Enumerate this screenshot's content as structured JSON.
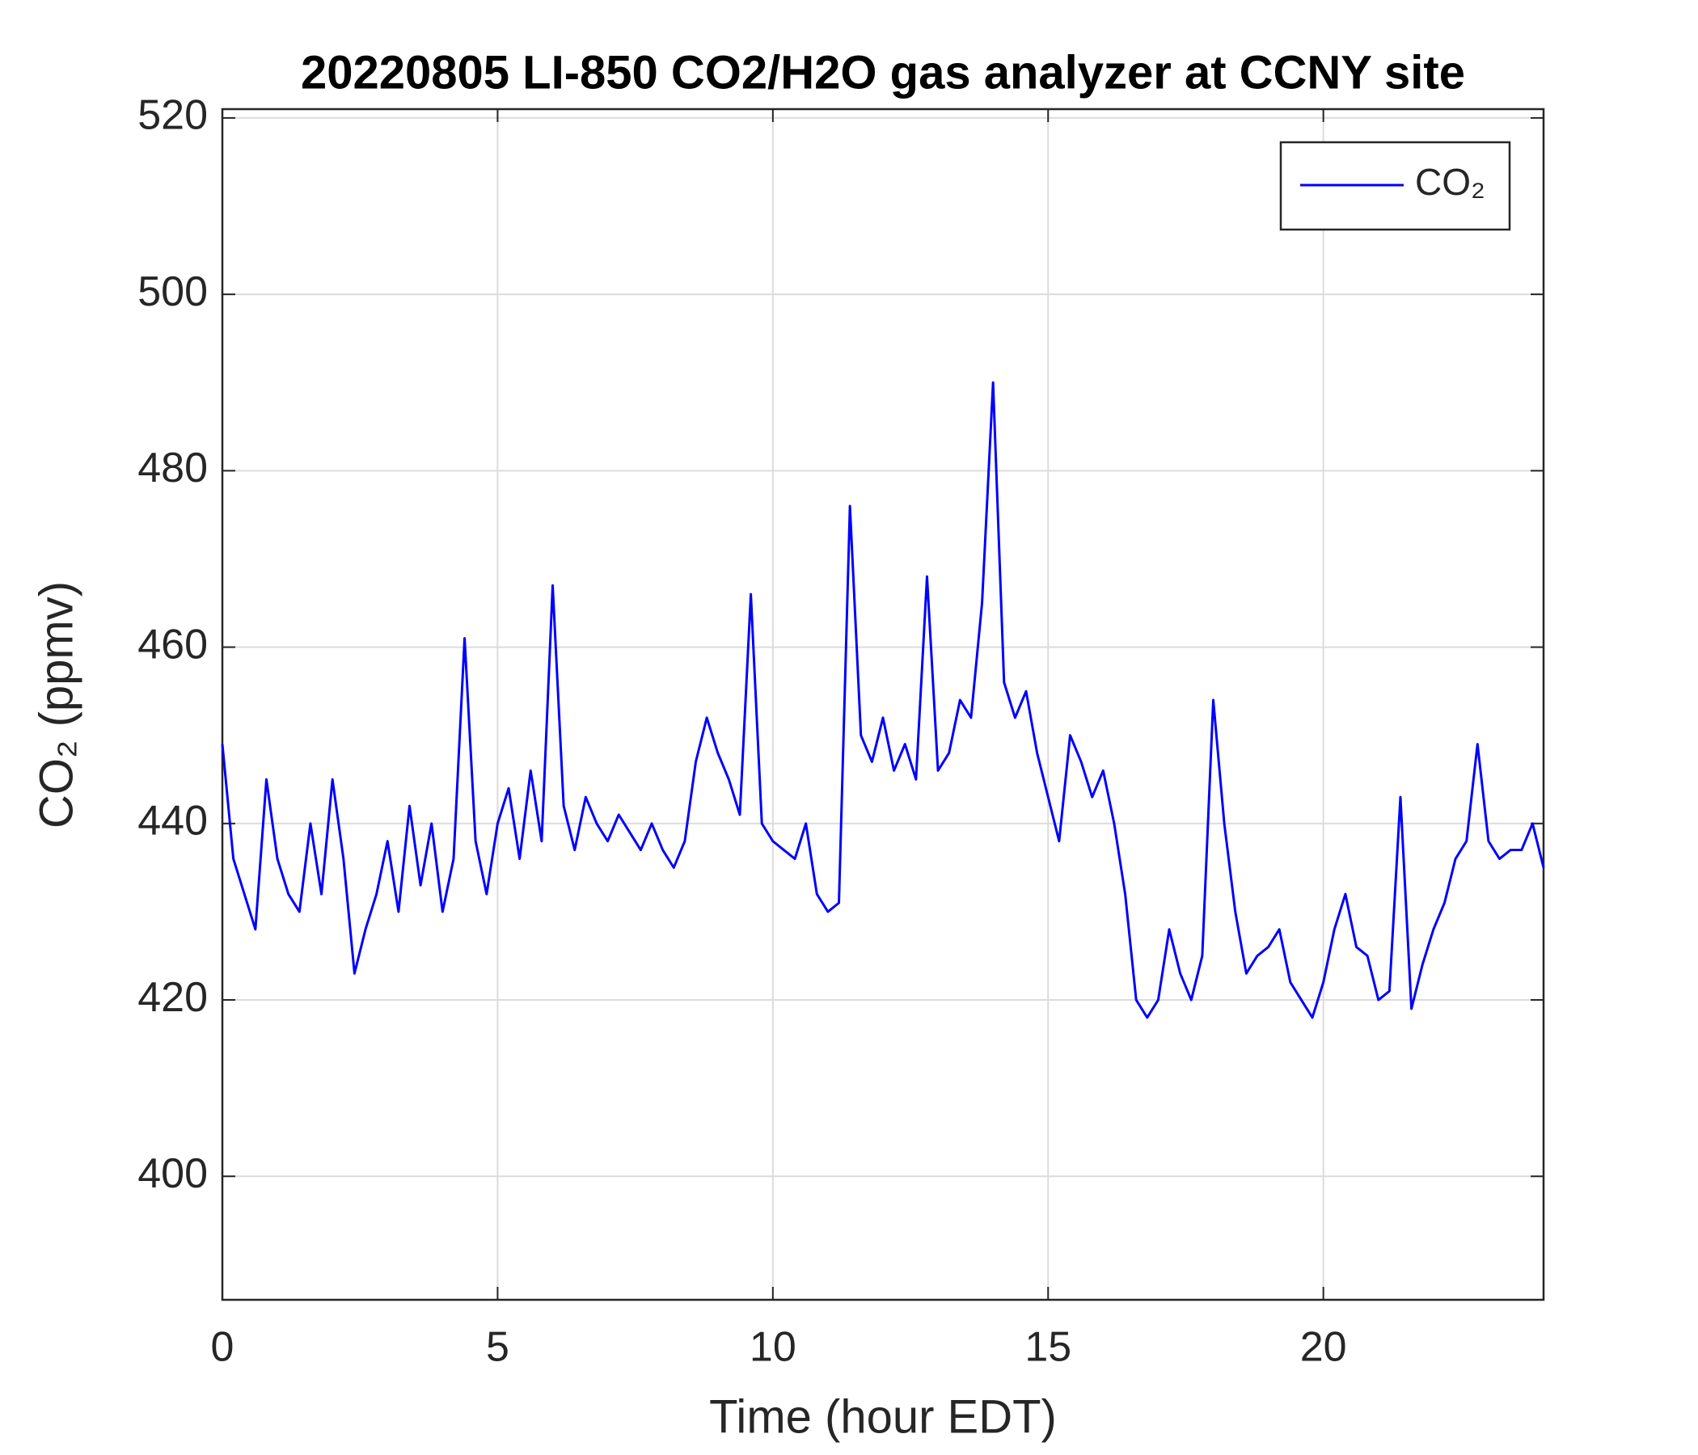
{
  "chart_data": {
    "type": "line",
    "title": "20220805 LI-850 CO2/H2O gas analyzer at CCNY site",
    "x_label": "Time (hour EDT)",
    "y_label": "CO₂ (ppmv)",
    "x": [
      0,
      0.2,
      0.4,
      0.6,
      0.8,
      1,
      1.2,
      1.4,
      1.6,
      1.8,
      2,
      2.2,
      2.4,
      2.6,
      2.8,
      3,
      3.2,
      3.4,
      3.6,
      3.8,
      4,
      4.2,
      4.4,
      4.6,
      4.8,
      5,
      5.2,
      5.4,
      5.6,
      5.8,
      6,
      6.2,
      6.4,
      6.6,
      6.8,
      7,
      7.2,
      7.4,
      7.6,
      7.8,
      8,
      8.2,
      8.4,
      8.6,
      8.8,
      9,
      9.2,
      9.4,
      9.6,
      9.8,
      10,
      10.2,
      10.4,
      10.6,
      10.8,
      11,
      11.2,
      11.4,
      11.6,
      11.8,
      12,
      12.2,
      12.4,
      12.6,
      12.8,
      13,
      13.2,
      13.4,
      13.6,
      13.8,
      14,
      14.2,
      14.4,
      14.6,
      14.8,
      15,
      15.2,
      15.4,
      15.6,
      15.8,
      16,
      16.2,
      16.4,
      16.6,
      16.8,
      17,
      17.2,
      17.4,
      17.6,
      17.8,
      18,
      18.2,
      18.4,
      18.6,
      18.8,
      19,
      19.2,
      19.4,
      19.6,
      19.8,
      20,
      20.2,
      20.4,
      20.6,
      20.8,
      21,
      21.2,
      21.4,
      21.6,
      21.8,
      22,
      22.2,
      22.4,
      22.6,
      22.8,
      23,
      23.2,
      23.4,
      23.6,
      23.8,
      24
    ],
    "series": [
      {
        "name": "CO₂",
        "color": "#0000ff",
        "values": [
          449,
          436,
          432,
          428,
          445,
          436,
          432,
          430,
          440,
          432,
          445,
          436,
          423,
          428,
          432,
          438,
          430,
          442,
          433,
          440,
          430,
          436,
          461,
          438,
          432,
          440,
          444,
          436,
          446,
          438,
          467,
          442,
          437,
          443,
          440,
          438,
          441,
          439,
          437,
          440,
          437,
          435,
          438,
          447,
          452,
          448,
          445,
          441,
          466,
          440,
          438,
          437,
          436,
          440,
          432,
          430,
          431,
          476,
          450,
          447,
          452,
          446,
          449,
          445,
          468,
          446,
          448,
          454,
          452,
          465,
          490,
          456,
          452,
          455,
          448,
          443,
          438,
          450,
          447,
          443,
          446,
          440,
          432,
          420,
          418,
          420,
          428,
          423,
          420,
          425,
          454,
          440,
          430,
          423,
          425,
          426,
          428,
          422,
          420,
          418,
          422,
          428,
          432,
          426,
          425,
          420,
          421,
          443,
          419,
          424,
          428,
          431,
          436,
          438,
          449,
          438,
          436,
          437,
          437,
          440,
          435
        ]
      }
    ],
    "xlim": [
      0,
      24
    ],
    "xticks": [
      0,
      5,
      10,
      15,
      20
    ],
    "ylim": [
      386,
      521
    ],
    "yticks": [
      400,
      420,
      440,
      460,
      480,
      500,
      520
    ],
    "grid": true,
    "legend": "upper right"
  }
}
